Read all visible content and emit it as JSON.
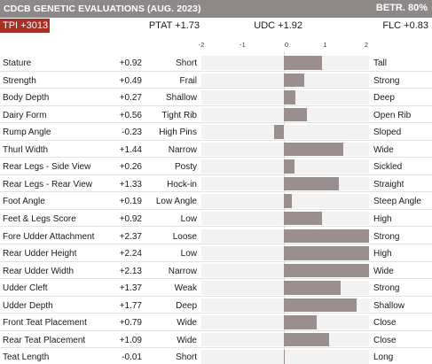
{
  "header": {
    "title": "CDCB GENETIC EVALUATIONS (AUG. 2023)",
    "reliability": "BETR. 80%"
  },
  "summary": {
    "tpi": "TPI +3013",
    "ptat": "PTAT +1.73",
    "udc": "UDC +1.92",
    "flc": "FLC +0.83"
  },
  "colors": {
    "header_bg": "#8f8888",
    "tpi_badge": "#a82e26",
    "bar": "#9a8e8f",
    "track": "#f2f2f2"
  },
  "chart_data": {
    "type": "bar",
    "orientation": "horizontal",
    "xlim": [
      -2,
      2
    ],
    "x_tick_labels": [
      "-2",
      "-1",
      "0",
      "1",
      "2"
    ],
    "grid": false,
    "rows": [
      {
        "trait": "Stature",
        "value_label": "+0.92",
        "value": 0.92,
        "low": "Short",
        "high": "Tall"
      },
      {
        "trait": "Strength",
        "value_label": "+0.49",
        "value": 0.49,
        "low": "Frail",
        "high": "Strong"
      },
      {
        "trait": "Body Depth",
        "value_label": "+0.27",
        "value": 0.27,
        "low": "Shallow",
        "high": "Deep"
      },
      {
        "trait": "Dairy Form",
        "value_label": "+0.56",
        "value": 0.56,
        "low": "Tight Rib",
        "high": "Open Rib"
      },
      {
        "trait": "Rump Angle",
        "value_label": "-0.23",
        "value": -0.23,
        "low": "High Pins",
        "high": "Sloped"
      },
      {
        "trait": "Thurl Width",
        "value_label": "+1.44",
        "value": 1.44,
        "low": "Narrow",
        "high": "Wide"
      },
      {
        "trait": "Rear Legs - Side View",
        "value_label": "+0.26",
        "value": 0.26,
        "low": "Posty",
        "high": "Sickled"
      },
      {
        "trait": "Rear Legs - Rear View",
        "value_label": "+1.33",
        "value": 1.33,
        "low": "Hock-in",
        "high": "Straight"
      },
      {
        "trait": "Foot Angle",
        "value_label": "+0.19",
        "value": 0.19,
        "low": "Low Angle",
        "high": "Steep Angle"
      },
      {
        "trait": "Feet & Legs Score",
        "value_label": "+0.92",
        "value": 0.92,
        "low": "Low",
        "high": "High"
      },
      {
        "trait": "Fore Udder Attachment",
        "value_label": "+2.37",
        "value": 2.37,
        "low": "Loose",
        "high": "Strong"
      },
      {
        "trait": "Rear Udder Height",
        "value_label": "+2.24",
        "value": 2.24,
        "low": "Low",
        "high": "High"
      },
      {
        "trait": "Rear Udder Width",
        "value_label": "+2.13",
        "value": 2.13,
        "low": "Narrow",
        "high": "Wide"
      },
      {
        "trait": "Udder Cleft",
        "value_label": "+1.37",
        "value": 1.37,
        "low": "Weak",
        "high": "Strong"
      },
      {
        "trait": "Udder Depth",
        "value_label": "+1.77",
        "value": 1.77,
        "low": "Deep",
        "high": "Shallow"
      },
      {
        "trait": "Front Teat Placement",
        "value_label": "+0.79",
        "value": 0.79,
        "low": "Wide",
        "high": "Close"
      },
      {
        "trait": "Rear Teat Placement",
        "value_label": "+1.09",
        "value": 1.09,
        "low": "Wide",
        "high": "Close"
      },
      {
        "trait": "Teat Length",
        "value_label": "-0.01",
        "value": -0.01,
        "low": "Short",
        "high": "Long"
      }
    ]
  }
}
